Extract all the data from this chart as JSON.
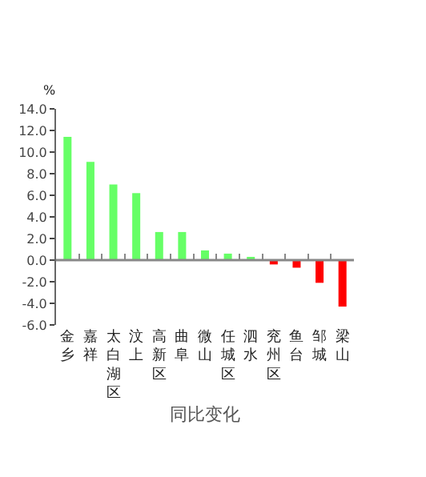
{
  "chart_data": {
    "type": "bar",
    "ylabel": "%",
    "xlabel": "同比变化",
    "categories": [
      "金乡",
      "嘉祥",
      "太白湖区",
      "汶上",
      "高新区",
      "曲阜",
      "微山",
      "任城区",
      "泗水",
      "兖州区",
      "鱼台",
      "邹城",
      "梁山"
    ],
    "values": [
      11.4,
      9.1,
      7.0,
      6.2,
      2.6,
      2.6,
      0.9,
      0.6,
      0.3,
      -0.4,
      -0.7,
      -2.1,
      -4.3
    ],
    "colors": [
      "#66ff66",
      "#66ff66",
      "#66ff66",
      "#66ff66",
      "#66ff66",
      "#66ff66",
      "#66ff66",
      "#66ff66",
      "#66ff66",
      "#ff0000",
      "#ff0000",
      "#ff0000",
      "#ff0000"
    ],
    "ylim": [
      -6,
      14
    ],
    "yticks": [
      {
        "value": -6,
        "label": "-6.0"
      },
      {
        "value": -4,
        "label": "-4.0"
      },
      {
        "value": -2,
        "label": "-2.0"
      },
      {
        "value": 0,
        "label": "0.0"
      },
      {
        "value": 2,
        "label": "2.0"
      },
      {
        "value": 4,
        "label": "4.0"
      },
      {
        "value": 6,
        "label": "6.0"
      },
      {
        "value": 8,
        "label": "8.0"
      },
      {
        "value": 10,
        "label": "10.0"
      },
      {
        "value": 12,
        "label": "12.0"
      },
      {
        "value": 14,
        "label": "14.0"
      }
    ],
    "ref_lines": [
      {
        "axis": "y",
        "value": 0,
        "color": "#888888"
      }
    ],
    "legend": false
  }
}
